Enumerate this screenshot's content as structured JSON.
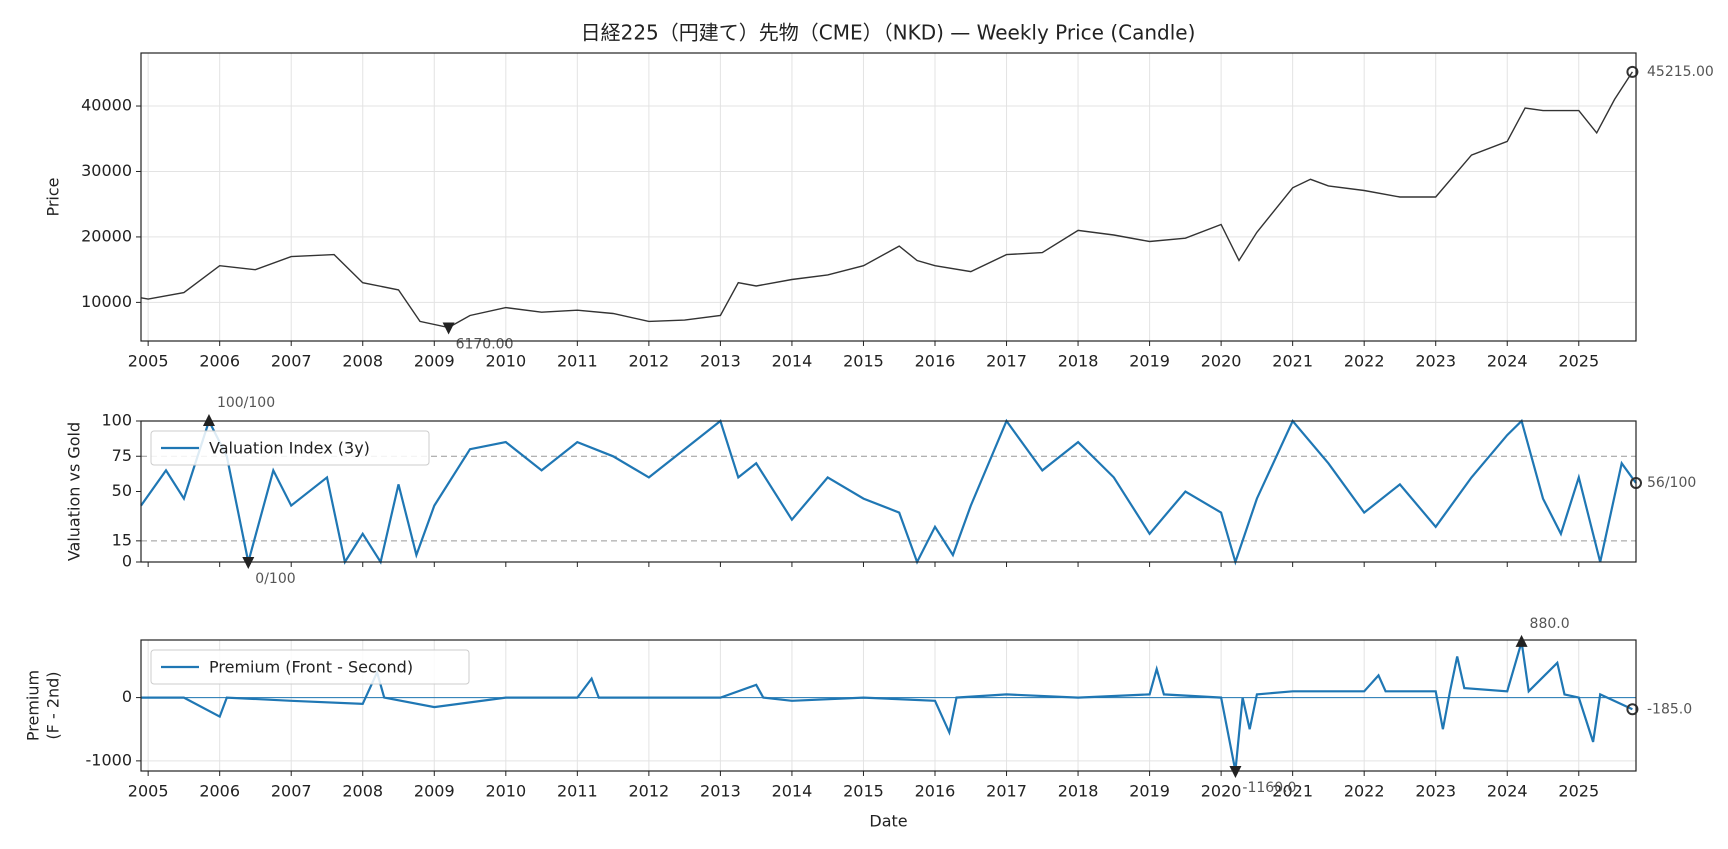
{
  "chart_data": [
    {
      "type": "line",
      "title": "日経225（円建て）先物（CME）（NKD) — Weekly Price (Candle)",
      "ylabel": "Price",
      "color": "#333333",
      "x": [
        2004.9,
        2005.0,
        2005.5,
        2006.0,
        2006.5,
        2007.0,
        2007.6,
        2008.0,
        2008.5,
        2008.8,
        2009.2,
        2009.5,
        2010.0,
        2010.5,
        2011.0,
        2011.5,
        2012.0,
        2012.5,
        2013.0,
        2013.25,
        2013.5,
        2014.0,
        2014.5,
        2015.0,
        2015.5,
        2015.75,
        2016.0,
        2016.5,
        2017.0,
        2017.5,
        2018.0,
        2018.5,
        2019.0,
        2019.5,
        2020.0,
        2020.25,
        2020.5,
        2021.0,
        2021.25,
        2021.5,
        2022.0,
        2022.5,
        2023.0,
        2023.5,
        2024.0,
        2024.25,
        2024.5,
        2024.75,
        2025.0,
        2025.25,
        2025.5,
        2025.75
      ],
      "values": [
        10700,
        10500,
        11500,
        15600,
        15000,
        17000,
        17300,
        13000,
        11900,
        7100,
        6170,
        8000,
        9200,
        8500,
        8800,
        8300,
        7100,
        7300,
        8000,
        13000,
        12500,
        13500,
        14200,
        15600,
        18600,
        16400,
        15600,
        14700,
        17300,
        17600,
        21000,
        20300,
        19300,
        19800,
        21900,
        16400,
        20700,
        27500,
        28800,
        27800,
        27100,
        26100,
        26100,
        32500,
        34600,
        39700,
        39300,
        39300,
        39300,
        35900,
        41000,
        45215
      ],
      "min_label": {
        "x": 2009.2,
        "y": 6170,
        "label": "6170.00"
      },
      "last_label": {
        "x": 2025.75,
        "y": 45215,
        "label": "45215.00"
      },
      "xlim": [
        2004.9,
        2025.8
      ],
      "xticks": [
        2005,
        2006,
        2007,
        2008,
        2009,
        2010,
        2011,
        2012,
        2013,
        2014,
        2015,
        2016,
        2017,
        2018,
        2019,
        2020,
        2021,
        2022,
        2023,
        2024,
        2025
      ],
      "ylim": [
        4100,
        48100
      ],
      "yticks": [
        10000,
        20000,
        30000,
        40000
      ],
      "grid": true,
      "show_xtick_labels": true
    },
    {
      "type": "line",
      "ylabel": "Valuation vs Gold",
      "legend": "upper left",
      "thresholds": [
        75,
        15
      ],
      "x": [
        2004.9,
        2005.25,
        2005.5,
        2005.85,
        2006.1,
        2006.4,
        2006.75,
        2007.0,
        2007.5,
        2007.75,
        2008.0,
        2008.25,
        2008.5,
        2008.75,
        2009.0,
        2009.5,
        2010.0,
        2010.5,
        2011.0,
        2011.5,
        2012.0,
        2012.5,
        2013.0,
        2013.25,
        2013.5,
        2014.0,
        2014.5,
        2015.0,
        2015.5,
        2015.75,
        2016.0,
        2016.25,
        2016.5,
        2017.0,
        2017.5,
        2018.0,
        2018.5,
        2019.0,
        2019.5,
        2020.0,
        2020.2,
        2020.5,
        2021.0,
        2021.5,
        2022.0,
        2022.5,
        2023.0,
        2023.5,
        2024.0,
        2024.2,
        2024.5,
        2024.75,
        2025.0,
        2025.3,
        2025.6,
        2025.8
      ],
      "series": [
        {
          "name": "Valuation Index (3y)",
          "color": "#1f77b4",
          "values": [
            40,
            65,
            45,
            100,
            75,
            0,
            65,
            40,
            60,
            0,
            20,
            0,
            55,
            5,
            40,
            80,
            85,
            65,
            85,
            75,
            60,
            80,
            100,
            60,
            70,
            30,
            60,
            45,
            35,
            0,
            25,
            5,
            40,
            100,
            65,
            85,
            60,
            20,
            50,
            35,
            0,
            45,
            100,
            70,
            35,
            55,
            25,
            60,
            90,
            100,
            45,
            20,
            60,
            0,
            70,
            56
          ]
        }
      ],
      "max_label": {
        "x": 2005.85,
        "y": 100,
        "label": "100/100"
      },
      "min_label": {
        "x": 2006.4,
        "y": 0,
        "label": "0/100"
      },
      "last_label": {
        "x": 2025.8,
        "y": 56,
        "label": "56/100"
      },
      "xlim": [
        2004.9,
        2025.8
      ],
      "xticks": [
        2005,
        2006,
        2007,
        2008,
        2009,
        2010,
        2011,
        2012,
        2013,
        2014,
        2015,
        2016,
        2017,
        2018,
        2019,
        2020,
        2021,
        2022,
        2023,
        2024,
        2025
      ],
      "ylim": [
        0,
        100
      ],
      "yticks": [
        0,
        15,
        50,
        75,
        100
      ],
      "grid": false,
      "show_xtick_labels": false
    },
    {
      "type": "line",
      "ylabel": [
        "Premium",
        "(F - 2nd)"
      ],
      "xlabel": "Date",
      "legend": "upper left",
      "x": [
        2004.9,
        2005.5,
        2006.0,
        2006.1,
        2007.0,
        2008.0,
        2008.2,
        2008.3,
        2009.0,
        2010.0,
        2011.0,
        2011.2,
        2011.3,
        2012.0,
        2013.0,
        2013.5,
        2013.6,
        2014.0,
        2015.0,
        2016.0,
        2016.2,
        2016.3,
        2017.0,
        2018.0,
        2019.0,
        2019.1,
        2019.2,
        2020.0,
        2020.2,
        2020.3,
        2020.4,
        2020.5,
        2021.0,
        2022.0,
        2022.2,
        2022.3,
        2023.0,
        2023.1,
        2023.2,
        2023.3,
        2023.4,
        2024.0,
        2024.2,
        2024.3,
        2024.7,
        2024.8,
        2025.0,
        2025.2,
        2025.3,
        2025.75
      ],
      "series": [
        {
          "name": "Premium (Front - Second)",
          "color": "#1f77b4",
          "values": [
            0,
            0,
            -300,
            0,
            -50,
            -100,
            400,
            0,
            -150,
            0,
            0,
            300,
            0,
            0,
            0,
            200,
            0,
            -50,
            0,
            -50,
            -550,
            0,
            50,
            0,
            50,
            450,
            50,
            0,
            -1160,
            0,
            -500,
            50,
            100,
            100,
            350,
            100,
            100,
            -500,
            100,
            650,
            150,
            100,
            880,
            100,
            550,
            50,
            0,
            -700,
            50,
            -185
          ]
        }
      ],
      "max_label": {
        "x": 2024.2,
        "y": 880,
        "label": "880.0"
      },
      "min_label": {
        "x": 2020.2,
        "y": -1160,
        "label": "-1160.0"
      },
      "last_label": {
        "x": 2025.75,
        "y": -185,
        "label": "-185.0"
      },
      "xlim": [
        2004.9,
        2025.8
      ],
      "xticks": [
        2005,
        2006,
        2007,
        2008,
        2009,
        2010,
        2011,
        2012,
        2013,
        2014,
        2015,
        2016,
        2017,
        2018,
        2019,
        2020,
        2021,
        2022,
        2023,
        2024,
        2025
      ],
      "ylim": [
        -1160,
        910
      ],
      "yticks": [
        -1000,
        0
      ],
      "grid": true,
      "show_xtick_labels": true
    }
  ]
}
